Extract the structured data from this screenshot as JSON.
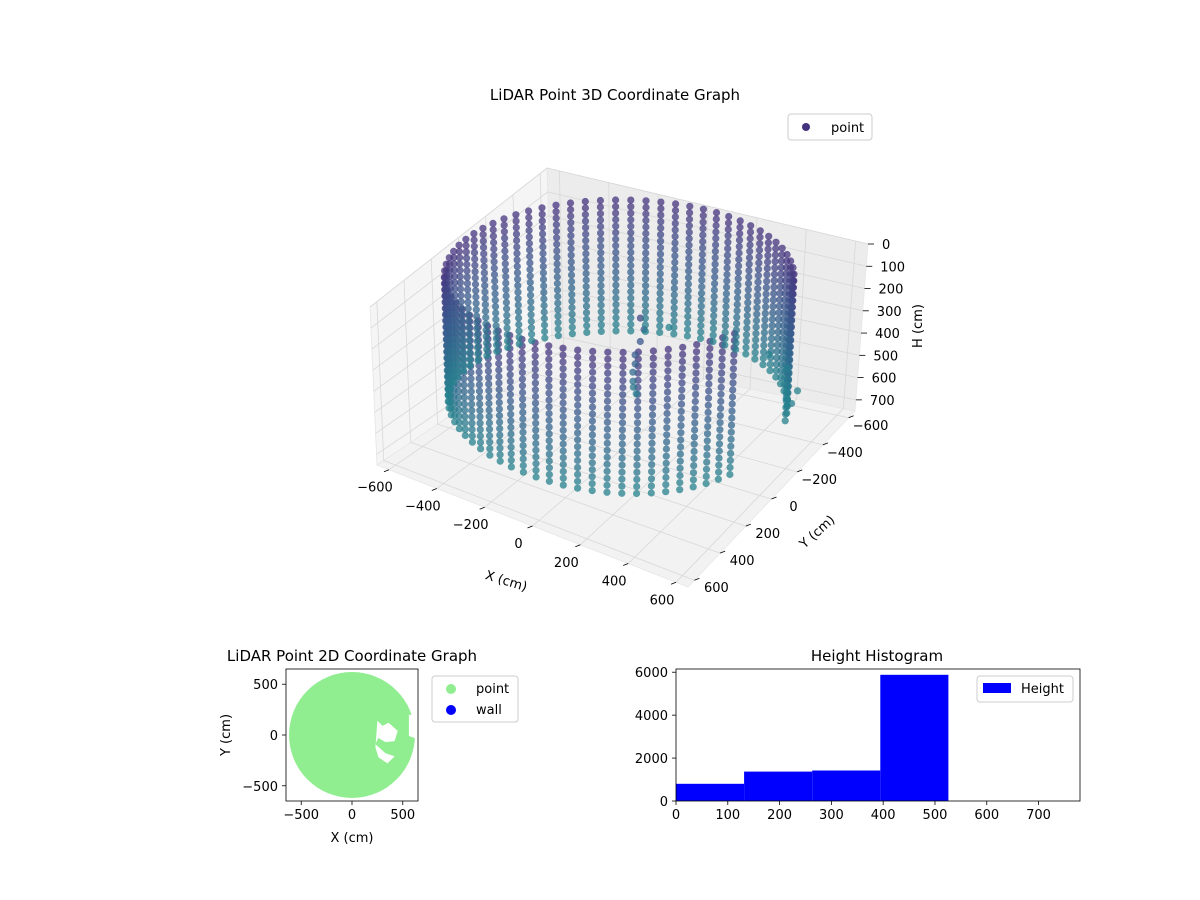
{
  "chart_data": [
    {
      "type": "scatter",
      "title": "LiDAR Point 3D Coordinate Graph",
      "xlabel": "X (cm)",
      "ylabel": "Y (cm)",
      "zlabel": "H (cm)",
      "xlim": [
        -650,
        650
      ],
      "ylim": [
        -650,
        650
      ],
      "zlim": [
        0,
        750
      ],
      "z_inverted": true,
      "x_ticks": [
        -600,
        -400,
        -200,
        0,
        200,
        400,
        600
      ],
      "y_ticks": [
        -600,
        -400,
        -200,
        0,
        200,
        400,
        600
      ],
      "z_ticks": [
        0,
        100,
        200,
        300,
        400,
        500,
        600,
        700
      ],
      "legend": [
        "point"
      ],
      "legend_position": "top-right",
      "colormap": "viridis (height)",
      "series": [
        {
          "name": "point",
          "color": "#46337e",
          "wall_ring": {
            "center": [
              0,
              0
            ],
            "radius": 620,
            "gap_angle_start": -20,
            "gap_angle_end": 20
          },
          "wall_height_range": [
            0,
            560
          ],
          "points": [
            {
              "x": 120,
              "y": 60,
              "h": 120
            },
            {
              "x": 130,
              "y": 50,
              "h": 170
            },
            {
              "x": 110,
              "y": 40,
              "h": 230
            },
            {
              "x": 100,
              "y": 60,
              "h": 280
            },
            {
              "x": 90,
              "y": 40,
              "h": 330
            },
            {
              "x": 70,
              "y": 20,
              "h": 380
            },
            {
              "x": 60,
              "y": 0,
              "h": 430
            },
            {
              "x": 40,
              "y": -40,
              "h": 480
            },
            {
              "x": 30,
              "y": -80,
              "h": 530
            },
            {
              "x": 300,
              "y": -600,
              "h": 550
            },
            {
              "x": 420,
              "y": -520,
              "h": 540
            },
            {
              "x": 520,
              "y": -420,
              "h": 560
            },
            {
              "x": 560,
              "y": -300,
              "h": 540
            },
            {
              "x": -150,
              "y": -650,
              "h": 560
            }
          ]
        }
      ]
    },
    {
      "type": "scatter",
      "title": "LiDAR Point 2D Coordinate Graph",
      "xlabel": "X (cm)",
      "ylabel": "Y (cm)",
      "xlim": [
        -650,
        650
      ],
      "ylim": [
        -650,
        650
      ],
      "x_ticks": [
        -500,
        0,
        500
      ],
      "y_ticks": [
        -500,
        0,
        500
      ],
      "legend_position": "outside right",
      "series": [
        {
          "name": "point",
          "color": "#90ee90",
          "shape": "filled disc, radius 620, with notches on the right side"
        },
        {
          "name": "wall",
          "color": "#0000ff"
        }
      ]
    },
    {
      "type": "bar",
      "title": "Height Histogram",
      "xlabel": "",
      "ylabel": "",
      "xlim": [
        0,
        780
      ],
      "ylim": [
        0,
        6150
      ],
      "x_ticks": [
        0,
        100,
        200,
        300,
        400,
        500,
        600,
        700
      ],
      "y_ticks": [
        0,
        2000,
        4000,
        6000
      ],
      "legend": [
        "Height"
      ],
      "legend_position": "top-right",
      "color": "#0000ff",
      "bins": [
        {
          "start": 0,
          "end": 131.5,
          "value": 800
        },
        {
          "start": 131.5,
          "end": 263,
          "value": 1370
        },
        {
          "start": 263,
          "end": 394.5,
          "value": 1420
        },
        {
          "start": 394.5,
          "end": 526,
          "value": 5880
        }
      ]
    }
  ]
}
